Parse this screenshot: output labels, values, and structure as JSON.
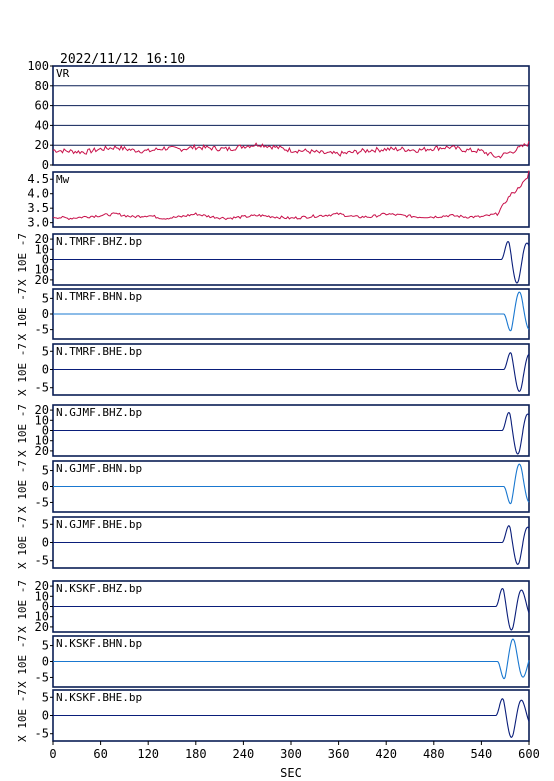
{
  "header": {
    "timestamp": "2022/11/12  16:10"
  },
  "colors": {
    "frame": "#0a1e55",
    "vr": "#c8104a",
    "dark": "#0a1e7a",
    "light": "#1a78d0"
  },
  "x_axis": {
    "label": "SEC",
    "ticks": [
      "0",
      "60",
      "120",
      "180",
      "240",
      "300",
      "360",
      "420",
      "480",
      "540",
      "600"
    ]
  },
  "chart_data": [
    {
      "type": "line",
      "label": "VR",
      "ylim": [
        0,
        100
      ],
      "yticks": [
        "0",
        "20",
        "40",
        "60",
        "80",
        "100"
      ],
      "grid": true,
      "color": "vr",
      "x": [
        0,
        20,
        40,
        60,
        80,
        100,
        120,
        140,
        160,
        180,
        200,
        220,
        240,
        260,
        280,
        300,
        320,
        340,
        360,
        380,
        400,
        420,
        440,
        460,
        480,
        500,
        520,
        540,
        560,
        580,
        600
      ],
      "values": [
        15,
        14,
        13,
        16,
        18,
        15,
        14,
        17,
        16,
        18,
        17,
        16,
        19,
        21,
        18,
        15,
        14,
        12,
        11,
        13,
        15,
        16,
        16,
        15,
        17,
        18,
        15,
        14,
        8,
        14,
        22
      ]
    },
    {
      "type": "line",
      "label": "Mw",
      "ylim": [
        2.85,
        4.75
      ],
      "yticks": [
        "3.0",
        "3.5",
        "4.0",
        "4.5"
      ],
      "grid": false,
      "color": "vr",
      "x": [
        0,
        20,
        40,
        60,
        80,
        100,
        120,
        140,
        160,
        180,
        200,
        220,
        240,
        260,
        280,
        300,
        320,
        340,
        360,
        380,
        400,
        420,
        440,
        460,
        480,
        500,
        520,
        540,
        560,
        570,
        580,
        590,
        600
      ],
      "values": [
        3.2,
        3.15,
        3.2,
        3.25,
        3.3,
        3.2,
        3.25,
        3.15,
        3.2,
        3.3,
        3.2,
        3.15,
        3.2,
        3.25,
        3.2,
        3.15,
        3.2,
        3.25,
        3.3,
        3.2,
        3.2,
        3.3,
        3.25,
        3.2,
        3.2,
        3.25,
        3.2,
        3.2,
        3.3,
        3.7,
        4.0,
        4.4,
        4.7
      ]
    },
    {
      "type": "line",
      "label": "N.TMRF.BHZ.bp",
      "ylim": [
        -25,
        25
      ],
      "yticks": [
        "20",
        "10",
        "0",
        "10",
        "20"
      ],
      "tickvals": [
        20,
        10,
        0,
        -10,
        -20
      ],
      "ylabel": "X 10E -7",
      "color": "dark",
      "event": {
        "t0": 565,
        "amp": 23,
        "flip": 1
      }
    },
    {
      "type": "line",
      "label": "N.TMRF.BHN.bp",
      "ylim": [
        -8,
        8
      ],
      "yticks": [
        "5",
        "0",
        "-5"
      ],
      "tickvals": [
        5,
        0,
        -5
      ],
      "ylabel": "X 10E -7",
      "color": "light",
      "event": {
        "t0": 568,
        "amp": 7,
        "flip": -1
      }
    },
    {
      "type": "line",
      "label": "N.TMRF.BHE.bp",
      "ylim": [
        -7,
        7
      ],
      "yticks": [
        "5",
        "0",
        "-5"
      ],
      "tickvals": [
        5,
        0,
        -5
      ],
      "ylabel": "X 10E -7",
      "color": "dark",
      "event": {
        "t0": 568,
        "amp": 6,
        "flip": 1
      }
    },
    {
      "type": "line",
      "label": "N.GJMF.BHZ.bp",
      "ylim": [
        -25,
        25
      ],
      "yticks": [
        "20",
        "10",
        "0",
        "10",
        "20"
      ],
      "tickvals": [
        20,
        10,
        0,
        -10,
        -20
      ],
      "ylabel": "X 10E -7",
      "color": "dark",
      "event": {
        "t0": 566,
        "amp": 23,
        "flip": 1
      }
    },
    {
      "type": "line",
      "label": "N.GJMF.BHN.bp",
      "ylim": [
        -8,
        8
      ],
      "yticks": [
        "5",
        "0",
        "-5"
      ],
      "tickvals": [
        5,
        0,
        -5
      ],
      "ylabel": "X 10E -7",
      "color": "light",
      "event": {
        "t0": 568,
        "amp": 7,
        "flip": -1
      }
    },
    {
      "type": "line",
      "label": "N.GJMF.BHE.bp",
      "ylim": [
        -7,
        7
      ],
      "yticks": [
        "5",
        "0",
        "-5"
      ],
      "tickvals": [
        5,
        0,
        -5
      ],
      "ylabel": "X 10E -7",
      "color": "dark",
      "event": {
        "t0": 566,
        "amp": 6,
        "flip": 1
      }
    },
    {
      "type": "line",
      "label": "N.KSKF.BHZ.bp",
      "ylim": [
        -25,
        25
      ],
      "yticks": [
        "20",
        "10",
        "0",
        "10",
        "20"
      ],
      "tickvals": [
        20,
        10,
        0,
        -10,
        -20
      ],
      "ylabel": "X 10E -7",
      "color": "dark",
      "event": {
        "t0": 558,
        "amp": 23,
        "flip": 1
      }
    },
    {
      "type": "line",
      "label": "N.KSKF.BHN.bp",
      "ylim": [
        -8,
        8
      ],
      "yticks": [
        "5",
        "0",
        "-5"
      ],
      "tickvals": [
        5,
        0,
        -5
      ],
      "ylabel": "X 10E -7",
      "color": "light",
      "event": {
        "t0": 560,
        "amp": 7,
        "flip": -1
      }
    },
    {
      "type": "line",
      "label": "N.KSKF.BHE.bp",
      "ylim": [
        -7,
        7
      ],
      "yticks": [
        "5",
        "0",
        "-5"
      ],
      "tickvals": [
        5,
        0,
        -5
      ],
      "ylabel": "X 10E -7",
      "color": "dark",
      "event": {
        "t0": 558,
        "amp": 6,
        "flip": 1
      }
    }
  ]
}
